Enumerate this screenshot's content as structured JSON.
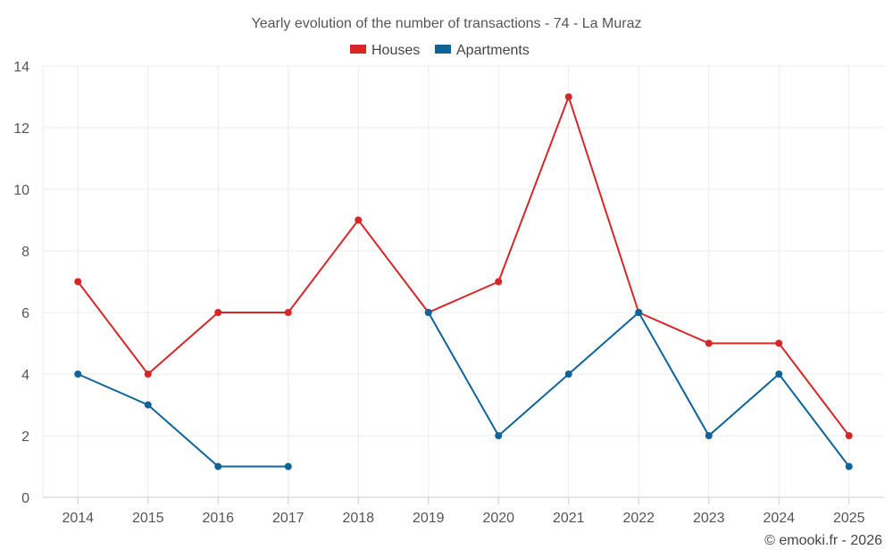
{
  "chart_data": {
    "type": "line",
    "title": "Yearly evolution of the number of transactions - 74 - La Muraz",
    "xlabel": "",
    "ylabel": "",
    "categories": [
      "2014",
      "2015",
      "2016",
      "2017",
      "2018",
      "2019",
      "2020",
      "2021",
      "2022",
      "2023",
      "2024",
      "2025"
    ],
    "ylim": [
      0,
      14
    ],
    "yticks": [
      0,
      2,
      4,
      6,
      8,
      10,
      12,
      14
    ],
    "grid": true,
    "legend_position": "top-center",
    "series": [
      {
        "name": "Houses",
        "color": "#d62728",
        "values": [
          7,
          4,
          6,
          6,
          9,
          6,
          7,
          13,
          6,
          5,
          5,
          2
        ]
      },
      {
        "name": "Apartments",
        "color": "#0e6499",
        "values": [
          4,
          3,
          1,
          1,
          null,
          6,
          2,
          4,
          6,
          2,
          4,
          1
        ]
      }
    ]
  },
  "credit": "© emooki.fr - 2026"
}
